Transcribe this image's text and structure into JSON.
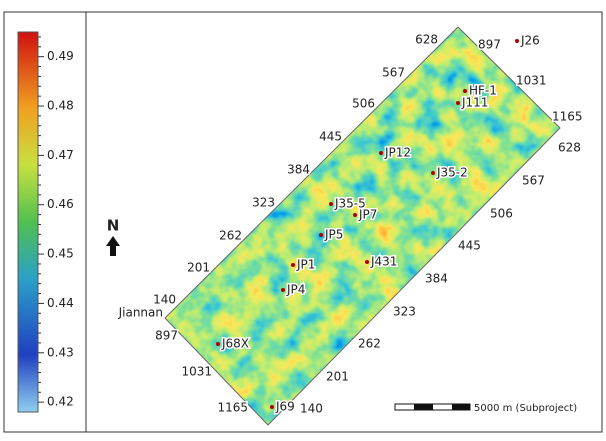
{
  "colorbar": {
    "lim": [
      0.418,
      0.495
    ],
    "ticks": [
      0.42,
      0.43,
      0.44,
      0.45,
      0.46,
      0.47,
      0.48,
      0.49
    ]
  },
  "north": "N",
  "line_labels": [
    "628",
    "567",
    "506",
    "445",
    "384",
    "323",
    "262",
    "201",
    "140",
    "897",
    "1031",
    "1165",
    "628",
    "567",
    "506",
    "445",
    "384",
    "323",
    "262",
    "201",
    "140",
    "897",
    "1031",
    "1165"
  ],
  "wells": [
    "J26",
    "HF-1",
    "J111",
    "JP12",
    "J35-2",
    "J35-5",
    "JP7",
    "JP5",
    "J431",
    "JP1",
    "JP4",
    "J68X",
    "J69"
  ],
  "place": "Jiannan",
  "scale_bar": "5000 m (Subproject)"
}
